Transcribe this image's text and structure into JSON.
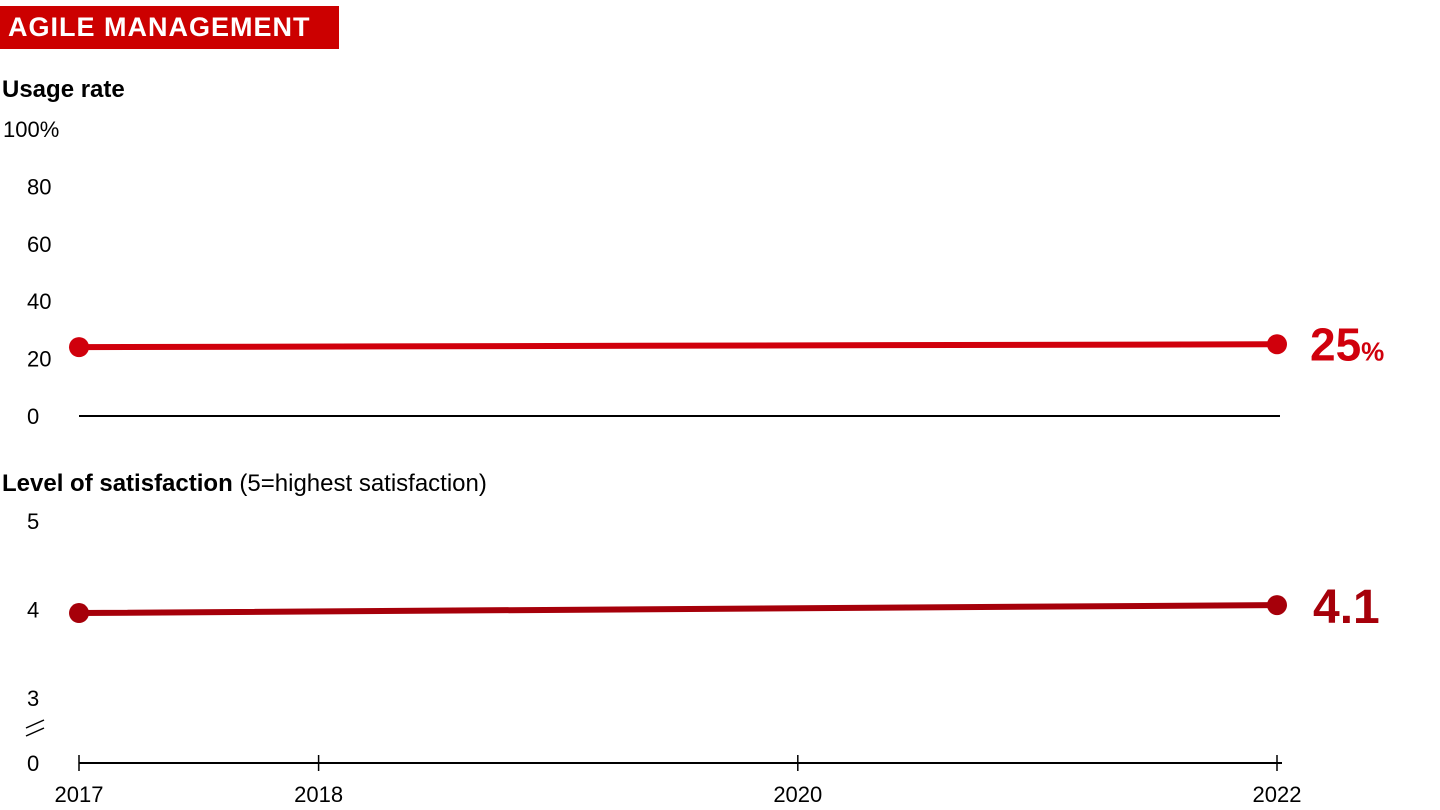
{
  "header": {
    "tag_label": "AGILE MANAGEMENT"
  },
  "colors": {
    "tag_bg": "#cc0000",
    "usage_series": "#d0000c",
    "satisfaction_series": "#a6000a",
    "axis": "#000000"
  },
  "chart_data": [
    {
      "type": "line",
      "title": "Usage rate",
      "subtitle": "",
      "x_categories": [
        "2017",
        "2022"
      ],
      "x": [
        2017,
        2022
      ],
      "xlim": [
        2017,
        2022
      ],
      "ylim": [
        0,
        100
      ],
      "yticks": [
        0,
        20,
        40,
        60,
        80,
        100
      ],
      "ytick_labels": [
        "0",
        "20",
        "40",
        "60",
        "80",
        "100%"
      ],
      "grid": false,
      "series": [
        {
          "values": [
            24,
            25
          ],
          "end_label": "25",
          "end_label_unit": "%"
        }
      ]
    },
    {
      "type": "line",
      "title": "Level of satisfaction",
      "subtitle": "(5=highest satisfaction)",
      "x": [
        2017,
        2022
      ],
      "xlim": [
        2017,
        2022
      ],
      "xticks": [
        2017,
        2018,
        2020,
        2022
      ],
      "xtick_labels": [
        "2017",
        "2018",
        "2020",
        "2022"
      ],
      "ylim": [
        3,
        5
      ],
      "y_axis_break": true,
      "yticks": [
        3,
        4,
        5
      ],
      "ytick_labels": [
        "3",
        "4",
        "5"
      ],
      "y_baseline_label": "0",
      "grid": false,
      "series": [
        {
          "values": [
            3.96,
            4.05
          ],
          "end_label": "4.1"
        }
      ]
    }
  ]
}
